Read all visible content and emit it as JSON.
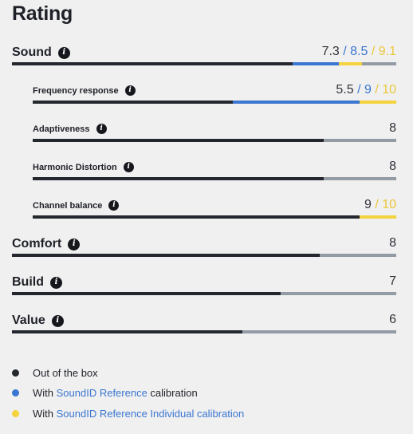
{
  "title": "Rating",
  "colors": {
    "out_of_box": "#25272e",
    "reference": "#3b76d1",
    "individual": "#f4d33f",
    "track": "#939ba4"
  },
  "info_icon_glyph": "i",
  "rows": [
    {
      "label": "Sound",
      "oob": "7.3",
      "ref": "/ 8.5",
      "ind": "/ 9.1",
      "oob_value": 7.3,
      "ref_value": 8.5,
      "ind_value": 9.1
    },
    {
      "label": "Frequency response",
      "oob": "5.5",
      "ref": "/ 9",
      "ind": "/ 10",
      "oob_value": 5.5,
      "ref_value": 9,
      "ind_value": 10
    },
    {
      "label": "Adaptiveness",
      "oob": "8",
      "oob_value": 8
    },
    {
      "label": "Harmonic Distortion",
      "oob": "8",
      "oob_value": 8
    },
    {
      "label": "Channel balance",
      "oob": "9",
      "ind": "/ 10",
      "oob_value": 9,
      "ind_value": 10
    },
    {
      "label": "Comfort",
      "oob": "8",
      "oob_value": 8
    },
    {
      "label": "Build",
      "oob": "7",
      "oob_value": 7
    },
    {
      "label": "Value",
      "oob": "6",
      "oob_value": 6
    }
  ],
  "legend": [
    {
      "prefix": "Out of the box",
      "link": "",
      "suffix": ""
    },
    {
      "prefix": "With ",
      "link": "SoundID Reference",
      "suffix": " calibration"
    },
    {
      "prefix": "With ",
      "link": "SoundID Reference Individual calibration",
      "suffix": ""
    }
  ]
}
